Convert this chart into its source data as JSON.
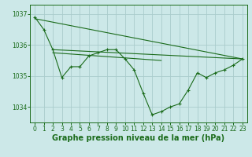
{
  "background_color": "#cce8e8",
  "grid_color": "#aacccc",
  "line_color": "#1a6b1a",
  "xlabel": "Graphe pression niveau de la mer (hPa)",
  "xlabel_fontsize": 7,
  "tick_fontsize": 5.5,
  "ylim": [
    1033.5,
    1037.3
  ],
  "xlim": [
    -0.5,
    23.5
  ],
  "yticks": [
    1034,
    1035,
    1036,
    1037
  ],
  "xticks": [
    0,
    1,
    2,
    3,
    4,
    5,
    6,
    7,
    8,
    9,
    10,
    11,
    12,
    13,
    14,
    15,
    16,
    17,
    18,
    19,
    20,
    21,
    22,
    23
  ],
  "series1": [
    1036.9,
    1036.5,
    1035.85,
    1034.95,
    1035.3,
    1035.3,
    1035.65,
    1035.75,
    1035.85,
    1035.85,
    1035.55,
    1035.2,
    1034.45,
    1033.75,
    1033.85,
    1034.0,
    1034.1,
    1034.55,
    1035.1,
    1034.95,
    1035.1,
    1035.2,
    1035.35,
    1035.55
  ],
  "trend1_x": [
    0,
    23
  ],
  "trend1_y": [
    1036.85,
    1035.55
  ],
  "trend2_x": [
    2,
    23
  ],
  "trend2_y": [
    1035.85,
    1035.55
  ],
  "trend3_x": [
    2,
    14
  ],
  "trend3_y": [
    1035.75,
    1035.5
  ]
}
